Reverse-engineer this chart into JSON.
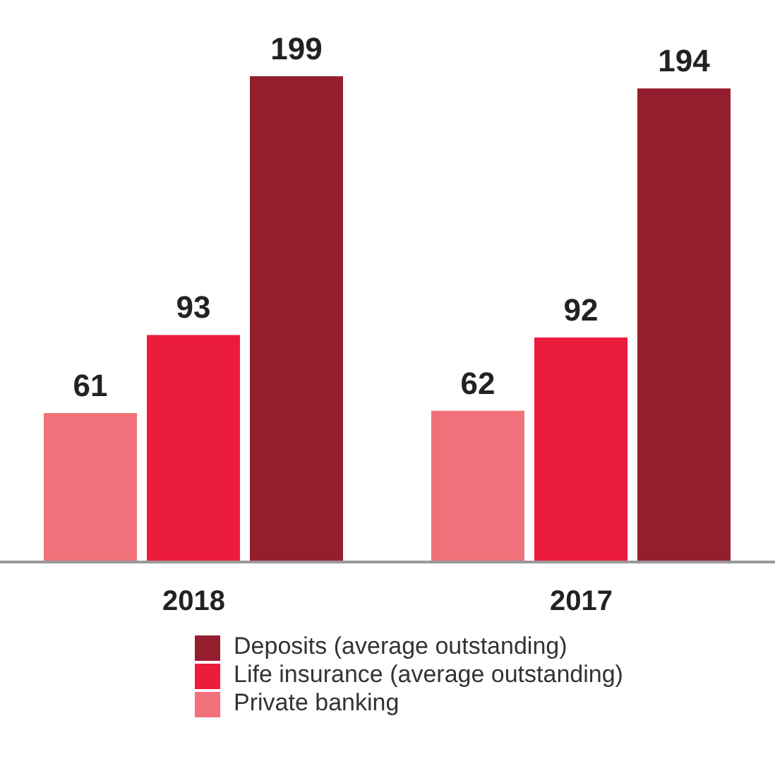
{
  "chart_data": {
    "type": "bar",
    "categories": [
      "2018",
      "2017"
    ],
    "series": [
      {
        "name": "Private banking",
        "color": "#f07179",
        "values": [
          61,
          62
        ]
      },
      {
        "name": "Life insurance (average outstanding)",
        "color": "#ec1c3c",
        "values": [
          93,
          92
        ]
      },
      {
        "name": "Deposits (average outstanding)",
        "color": "#951e2e",
        "values": [
          199,
          194
        ]
      }
    ],
    "data_labels": true,
    "legend": "bottom",
    "grid": false
  }
}
